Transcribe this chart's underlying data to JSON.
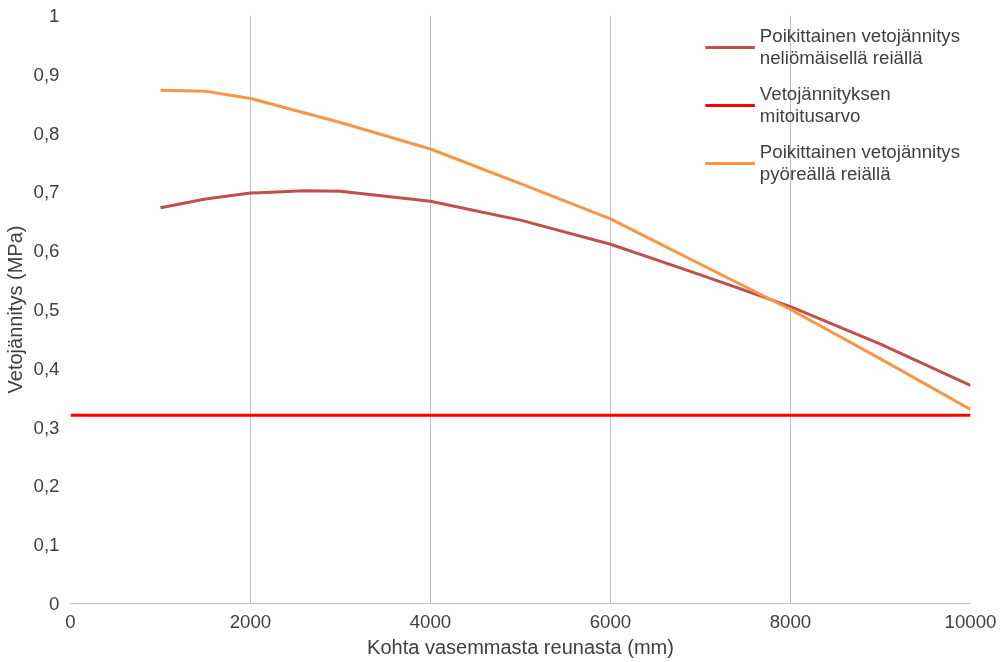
{
  "chart_data": {
    "type": "line",
    "xlabel": "Kohta vasemmasta reunasta (mm)",
    "ylabel": "Vetojännitys (MPa)",
    "xlim": [
      0,
      10000
    ],
    "xticks": [
      0,
      2000,
      4000,
      6000,
      8000,
      10000
    ],
    "ylim": [
      0,
      1
    ],
    "yticks": [
      0,
      {
        "value": 0.1,
        "label": "0,1"
      },
      {
        "value": 0.2,
        "label": "0,2"
      },
      {
        "value": 0.3,
        "label": "0,3"
      },
      {
        "value": 0.4,
        "label": "0,4"
      },
      {
        "value": 0.5,
        "label": "0,5"
      },
      {
        "value": 0.6,
        "label": "0,6"
      },
      {
        "value": 0.7,
        "label": "0,7"
      },
      {
        "value": 0.8,
        "label": "0,8"
      },
      {
        "value": 0.9,
        "label": "0,9"
      },
      1
    ],
    "grid": "x",
    "legend": "top right",
    "line_style": "solid",
    "marker": "none",
    "series": [
      {
        "name": "Poikittainen vetojännitys neliömäisellä reiällä",
        "color": "#c0504d",
        "x": [
          1000,
          1500,
          2000,
          2600,
          3000,
          4000,
          5000,
          6000,
          7000,
          8000,
          9000,
          10000
        ],
        "values": [
          0.673,
          0.688,
          0.698,
          0.702,
          0.701,
          0.684,
          0.652,
          0.611,
          0.559,
          0.505,
          0.441,
          0.371
        ]
      },
      {
        "name": "Vetojännityksen mitoitusarvo",
        "color": "#ff0000",
        "x": [
          0,
          10000
        ],
        "values": [
          0.32,
          0.32
        ]
      },
      {
        "name": "Poikittainen vetojännitys pyöreällä reiällä",
        "color": "#f79646",
        "x": [
          1000,
          1500,
          2000,
          3000,
          4000,
          5000,
          6000,
          7000,
          8000,
          9000,
          10000
        ],
        "values": [
          0.873,
          0.871,
          0.859,
          0.818,
          0.773,
          0.714,
          0.654,
          0.577,
          0.5,
          0.416,
          0.33
        ]
      }
    ]
  }
}
